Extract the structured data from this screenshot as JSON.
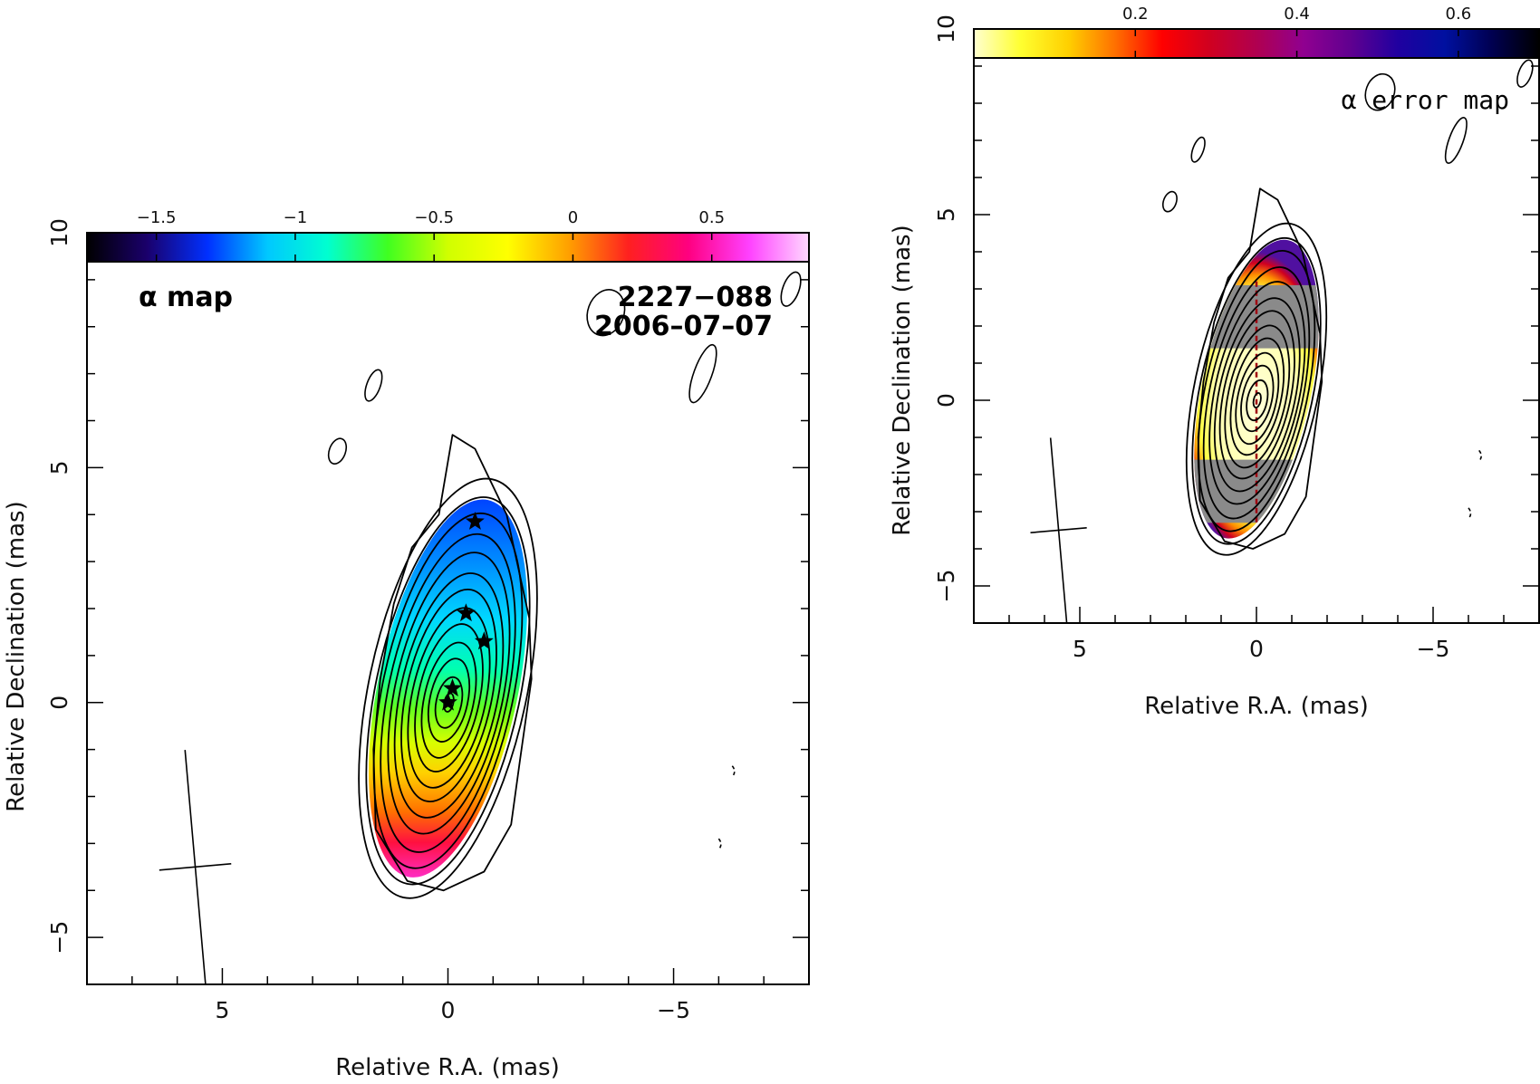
{
  "chart_data": [
    {
      "type": "heatmap",
      "panel": "alpha-map",
      "xlabel": "Relative R.A. (mas)",
      "ylabel": "Relative Declination (mas)",
      "xlim": [
        8,
        -8
      ],
      "ylim": [
        -6,
        10
      ],
      "x_ticks": [
        5,
        0,
        -5
      ],
      "x_tick_labels": [
        "5",
        "0",
        "−5"
      ],
      "y_ticks": [
        -5,
        0,
        5,
        10
      ],
      "y_tick_labels": [
        "−5",
        "0",
        "5",
        "10"
      ],
      "colorbar": {
        "range": [
          -1.75,
          0.85
        ],
        "ticks": [
          -1.5,
          -1,
          -0.5,
          0,
          0.5
        ],
        "tick_labels": [
          "−1.5",
          "−1",
          "−0.5",
          "0",
          "0.5"
        ],
        "colormap": "rainbow",
        "stops": [
          "#000000",
          "#1a006b",
          "#0030ff",
          "#00c8ff",
          "#00ffd0",
          "#40ff20",
          "#d0ff00",
          "#ffff00",
          "#ffa000",
          "#ff2020",
          "#ff0080",
          "#ff40ff",
          "#ffd8ff"
        ]
      },
      "annotations": [
        "α map",
        "2227−088",
        "2006–07–07"
      ],
      "markers": [
        {
          "x": -0.6,
          "y": 3.85
        },
        {
          "x": -0.4,
          "y": 1.9
        },
        {
          "x": -0.8,
          "y": 1.3
        },
        {
          "x": -0.1,
          "y": 0.3
        },
        {
          "x": 0.0,
          "y": 0.0
        }
      ],
      "beam": {
        "cross_center_x": 5.6,
        "cross_center_y": -3.5,
        "major_mas": 5.0,
        "minor_mas": 1.6,
        "pa_deg": 5
      }
    },
    {
      "type": "heatmap",
      "panel": "alpha-error-map",
      "xlabel": "Relative R.A. (mas)",
      "ylabel": "Relative Declination (mas)",
      "xlim": [
        8,
        -8
      ],
      "ylim": [
        -6,
        10
      ],
      "x_ticks": [
        5,
        0,
        -5
      ],
      "x_tick_labels": [
        "5",
        "0",
        "−5"
      ],
      "y_ticks": [
        -5,
        0,
        5,
        10
      ],
      "y_tick_labels": [
        "−5",
        "0",
        "5",
        "10"
      ],
      "colorbar": {
        "range": [
          0.0,
          0.7
        ],
        "ticks": [
          0.2,
          0.4,
          0.6
        ],
        "tick_labels": [
          "0.2",
          "0.4",
          "0.6"
        ],
        "colormap": "heat",
        "stops": [
          "#ffffd0",
          "#ffff30",
          "#ffd000",
          "#ff7000",
          "#ff0000",
          "#d00020",
          "#b00050",
          "#900090",
          "#600090",
          "#2000a0",
          "#0010a0",
          "#000050",
          "#000000"
        ]
      },
      "annotations": [
        "α error map"
      ],
      "beam": {
        "cross_center_x": 5.6,
        "cross_center_y": -3.5,
        "major_mas": 5.0,
        "minor_mas": 1.6,
        "pa_deg": 5
      }
    }
  ]
}
